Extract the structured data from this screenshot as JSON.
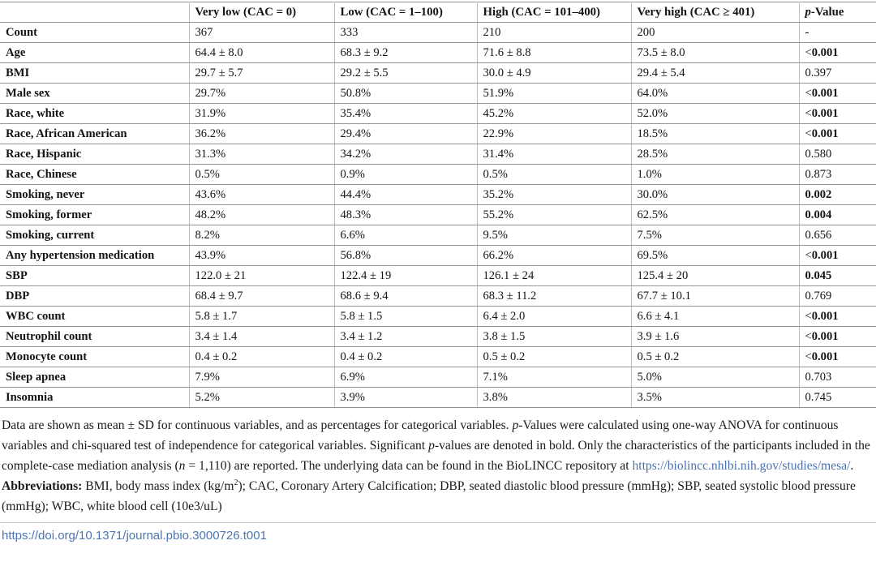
{
  "colors": {
    "link_blue": "#4a72ae",
    "doi_blue": "#4d76b0",
    "border_dark": "#969696",
    "border_light": "#bfbfbf"
  },
  "table": {
    "header": [
      [
        {
          "t": ""
        }
      ],
      [
        {
          "t": "Very low (CAC = 0)"
        }
      ],
      [
        {
          "t": "Low (CAC = 1–100)"
        }
      ],
      [
        {
          "t": "High (CAC = 101–400)"
        }
      ],
      [
        {
          "t": "Very high (CAC ≥ 401)"
        }
      ],
      [
        {
          "t": "p",
          "style": "italic"
        },
        {
          "t": "-Value"
        }
      ]
    ],
    "rows": [
      {
        "label": "Count",
        "values": [
          "367",
          "333",
          "210",
          "200"
        ],
        "p": "-",
        "p_bold": false
      },
      {
        "label": "Age",
        "values": [
          "64.4 ± 8.0",
          "68.3 ± 9.2",
          "71.6 ± 8.8",
          "73.5 ± 8.0"
        ],
        "p": "<0.001",
        "p_bold": true
      },
      {
        "label": "BMI",
        "values": [
          "29.7 ± 5.7",
          "29.2 ± 5.5",
          "30.0 ± 4.9",
          "29.4 ± 5.4"
        ],
        "p": "0.397",
        "p_bold": false
      },
      {
        "label": "Male sex",
        "values": [
          "29.7%",
          "50.8%",
          "51.9%",
          "64.0%"
        ],
        "p": "<0.001",
        "p_bold": true
      },
      {
        "label": "Race, white",
        "values": [
          "31.9%",
          "35.4%",
          "45.2%",
          "52.0%"
        ],
        "p": "<0.001",
        "p_bold": true
      },
      {
        "label": "Race, African American",
        "values": [
          "36.2%",
          "29.4%",
          "22.9%",
          "18.5%"
        ],
        "p": "<0.001",
        "p_bold": true
      },
      {
        "label": "Race, Hispanic",
        "values": [
          "31.3%",
          "34.2%",
          "31.4%",
          "28.5%"
        ],
        "p": "0.580",
        "p_bold": false
      },
      {
        "label": "Race, Chinese",
        "values": [
          "0.5%",
          "0.9%",
          "0.5%",
          "1.0%"
        ],
        "p": "0.873",
        "p_bold": false
      },
      {
        "label": "Smoking, never",
        "values": [
          "43.6%",
          "44.4%",
          "35.2%",
          "30.0%"
        ],
        "p": "0.002",
        "p_bold": true
      },
      {
        "label": "Smoking, former",
        "values": [
          "48.2%",
          "48.3%",
          "55.2%",
          "62.5%"
        ],
        "p": "0.004",
        "p_bold": true
      },
      {
        "label": "Smoking, current",
        "values": [
          "8.2%",
          "6.6%",
          "9.5%",
          "7.5%"
        ],
        "p": "0.656",
        "p_bold": false
      },
      {
        "label": "Any hypertension medication",
        "values": [
          "43.9%",
          "56.8%",
          "66.2%",
          "69.5%"
        ],
        "p": "<0.001",
        "p_bold": true
      },
      {
        "label": "SBP",
        "values": [
          "122.0 ± 21",
          "122.4 ± 19",
          "126.1 ± 24",
          "125.4 ± 20"
        ],
        "p": "0.045",
        "p_bold": true
      },
      {
        "label": "DBP",
        "values": [
          "68.4 ± 9.7",
          "68.6 ± 9.4",
          "68.3 ± 11.2",
          "67.7 ± 10.1"
        ],
        "p": "0.769",
        "p_bold": false
      },
      {
        "label": "WBC count",
        "values": [
          "5.8 ± 1.7",
          "5.8 ± 1.5",
          "6.4 ± 2.0",
          "6.6 ± 4.1"
        ],
        "p": "<0.001",
        "p_bold": true
      },
      {
        "label": "Neutrophil count",
        "values": [
          "3.4 ± 1.4",
          "3.4 ± 1.2",
          "3.8 ± 1.5",
          "3.9 ± 1.6"
        ],
        "p": "<0.001",
        "p_bold": true
      },
      {
        "label": "Monocyte count",
        "values": [
          "0.4 ± 0.2",
          "0.4 ± 0.2",
          "0.5 ± 0.2",
          "0.5 ± 0.2"
        ],
        "p": "<0.001",
        "p_bold": true
      },
      {
        "label": "Sleep apnea",
        "values": [
          "7.9%",
          "6.9%",
          "7.1%",
          "5.0%"
        ],
        "p": "0.703",
        "p_bold": false
      },
      {
        "label": "Insomnia",
        "values": [
          "5.2%",
          "3.9%",
          "3.8%",
          "3.5%"
        ],
        "p": "0.745",
        "p_bold": false
      }
    ]
  },
  "footnotes": {
    "data_description": [
      {
        "t": "Data are shown as mean ± SD for continuous variables, and as percentages for categorical variables. "
      },
      {
        "t": "p",
        "style": "italic"
      },
      {
        "t": "-Values were calculated using one-way ANOVA for continuous variables and chi-squared test of independence for categorical variables. Significant "
      },
      {
        "t": "p",
        "style": "italic"
      },
      {
        "t": "-values are denoted in bold. Only the characteristics of the participants included in the complete-case mediation analysis ("
      },
      {
        "t": "n",
        "style": "italic"
      },
      {
        "t": " = 1,110) are reported. The underlying data can be found in the BioLINCC repository at "
      },
      {
        "t": "https://biolincc.nhlbi.nih.gov/studies/mesa/",
        "style": "link"
      },
      {
        "t": "."
      }
    ],
    "abbreviations": [
      {
        "t": "Abbreviations:",
        "style": "bold"
      },
      {
        "t": " BMI, body mass index (kg/m"
      },
      {
        "t": "2",
        "style": "sup"
      },
      {
        "t": "); CAC, Coronary Artery Calcification; DBP, seated diastolic blood pressure (mmHg); SBP, seated systolic blood pressure (mmHg); WBC, white blood cell (10e3/uL)"
      }
    ]
  },
  "doi": {
    "link_label": "https://doi.org/10.1371/journal.pbio.3000726.t001"
  }
}
